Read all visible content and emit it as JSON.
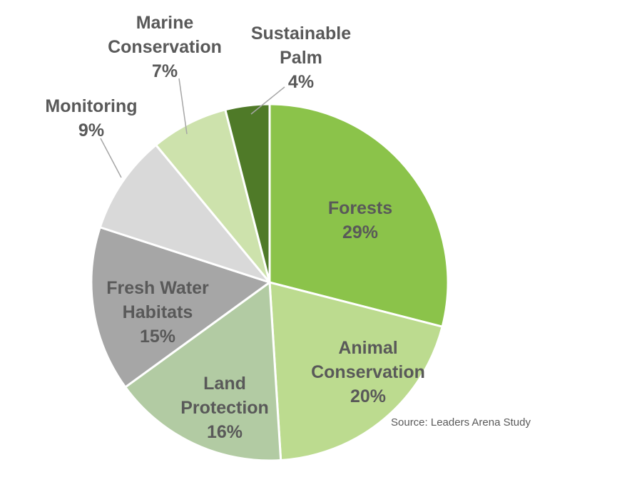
{
  "chart_data": {
    "type": "pie",
    "title": "",
    "source": "Source: Leaders Arena Study",
    "direction": "clockwise",
    "start_angle_deg": 0,
    "legend_position": "none",
    "text_color": "#595959",
    "slice_border_color": "#FFFFFF",
    "slices": [
      {
        "label": "Forests",
        "value": 29,
        "pct": "29%",
        "color": "#8BC34A",
        "label_placement": "inside"
      },
      {
        "label": "Animal Conservation",
        "value": 20,
        "pct": "20%",
        "color": "#BCDB8F",
        "label_placement": "inside"
      },
      {
        "label": "Land Protection",
        "value": 16,
        "pct": "16%",
        "color": "#B2CBA3",
        "label_placement": "inside"
      },
      {
        "label": "Fresh Water Habitats",
        "value": 15,
        "pct": "15%",
        "color": "#A6A6A6",
        "label_placement": "inside"
      },
      {
        "label": "Monitoring",
        "value": 9,
        "pct": "9%",
        "color": "#D9D9D9",
        "label_placement": "outside"
      },
      {
        "label": "Marine Conservation",
        "value": 7,
        "pct": "7%",
        "color": "#CDE2AC",
        "label_placement": "outside"
      },
      {
        "label": "Sustainable Palm",
        "value": 4,
        "pct": "4%",
        "color": "#4F7A28",
        "label_placement": "outside"
      }
    ]
  }
}
